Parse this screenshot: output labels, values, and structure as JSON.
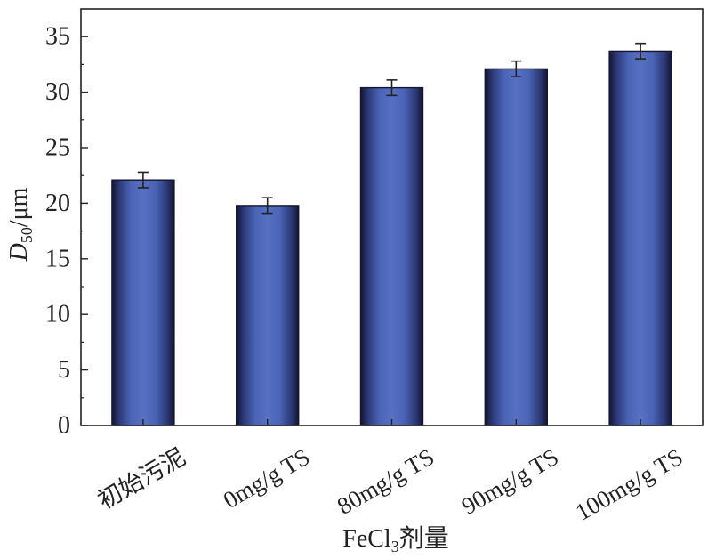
{
  "chart_data": {
    "type": "bar",
    "categories": [
      "初始污泥",
      "0mg/g TS",
      "80mg/g TS",
      "90mg/g TS",
      "100mg/g TS"
    ],
    "values": [
      22.1,
      19.8,
      30.4,
      32.1,
      33.7
    ],
    "errors": [
      0.7,
      0.7,
      0.7,
      0.7,
      0.7
    ],
    "ylim": [
      0,
      37.5
    ],
    "yticks": [
      0,
      5,
      10,
      15,
      20,
      25,
      30,
      35
    ],
    "xlabel": {
      "prefix": "FeCl",
      "subscript": "3",
      "suffix": "剂量"
    },
    "ylabel": {
      "symbol": "D",
      "subscript": "50",
      "suffix": "/μm"
    },
    "bar_color": "#4a63b5",
    "bar_edge_color": "#151530",
    "grid": false,
    "legend": "none"
  }
}
